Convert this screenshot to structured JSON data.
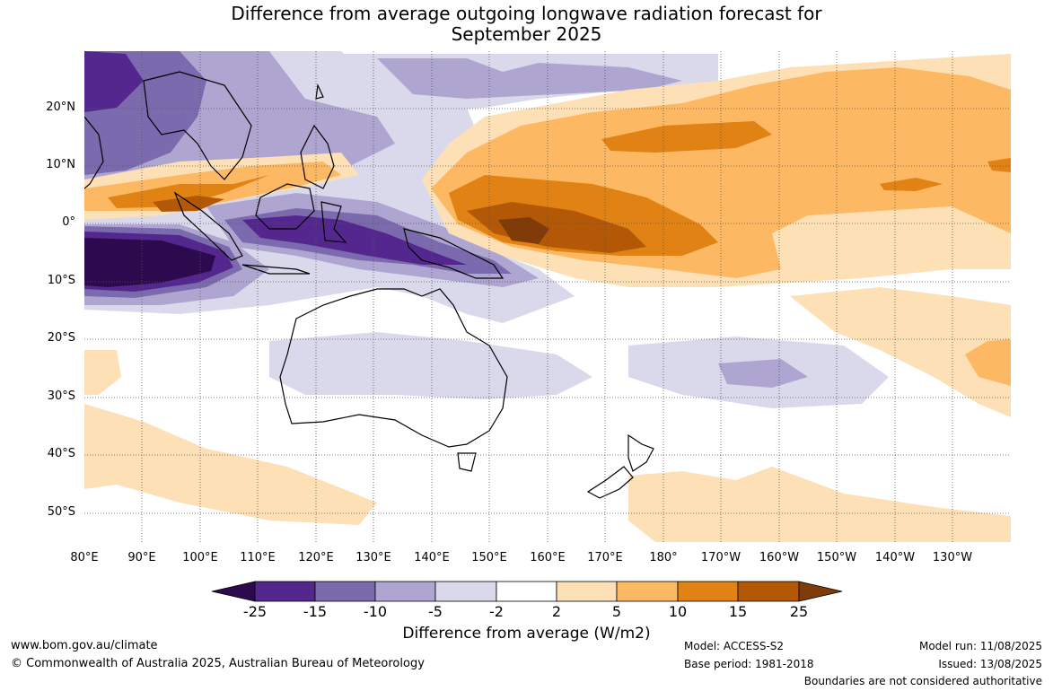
{
  "title": {
    "line1": "Difference from average outgoing longwave radiation forecast for",
    "line2": "September 2025"
  },
  "map": {
    "type": "anomaly-map",
    "lat_labels": [
      "20°N",
      "10°N",
      "0°",
      "10°S",
      "20°S",
      "30°S",
      "40°S",
      "50°S"
    ],
    "lon_labels": [
      "80°E",
      "90°E",
      "100°E",
      "110°E",
      "120°E",
      "130°E",
      "140°E",
      "150°E",
      "160°E",
      "170°E",
      "180°",
      "170°W",
      "160°W",
      "150°W",
      "140°W",
      "130°W"
    ],
    "grid": true
  },
  "colorbar": {
    "labels": [
      "-25",
      "-15",
      "-10",
      "-5",
      "-2",
      "2",
      "5",
      "10",
      "15",
      "25"
    ],
    "colors": {
      "below_min": "#2d0a4d",
      "b1": "#54278f",
      "b2": "#7b6aad",
      "b3": "#aea6d1",
      "b4": "#d9d9eb",
      "neutral": "#ffffff",
      "o1": "#fee0b6",
      "o2": "#fdb863",
      "o3": "#e08214",
      "o4": "#b35806",
      "above_max": "#7f3b08"
    },
    "title": "Difference from average (W/m2)"
  },
  "footer": {
    "website": "www.bom.gov.au/climate",
    "copyright": "© Commonwealth of Australia 2025, Australian Bureau of Meteorology",
    "model": "Model: ACCESS-S2",
    "base_period": "Base period: 1981-2018",
    "model_run": "Model run: 11/08/2025",
    "issued": "Issued: 13/08/2025",
    "disclaimer": "Boundaries are not considered authoritative"
  }
}
